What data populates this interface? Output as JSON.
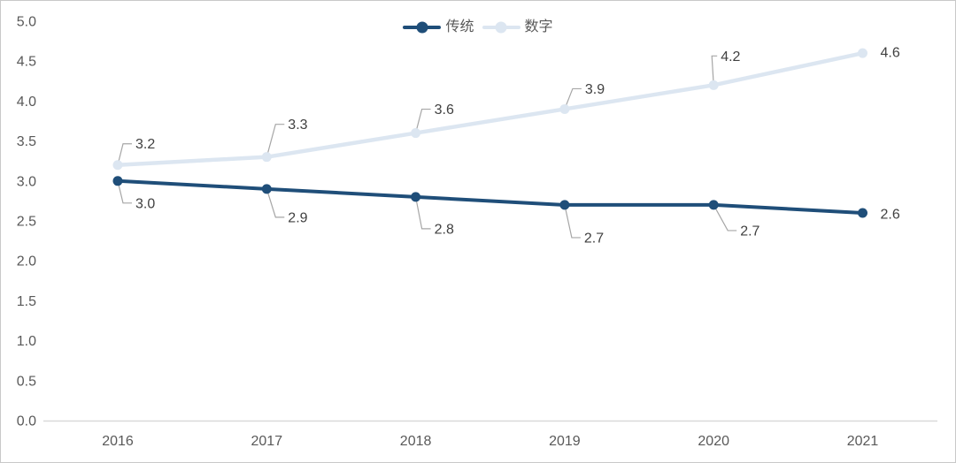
{
  "chart_data": {
    "type": "line",
    "title": "",
    "xlabel": "",
    "ylabel": "",
    "categories": [
      "2016",
      "2017",
      "2018",
      "2019",
      "2020",
      "2021"
    ],
    "series": [
      {
        "id": "traditional",
        "name": "传统",
        "values": [
          3.0,
          2.9,
          2.8,
          2.7,
          2.7,
          2.6
        ],
        "point_labels": [
          "3.0",
          "2.9",
          "2.8",
          "2.7",
          "2.7",
          "2.6"
        ],
        "color": "#1f4e79",
        "label_side": "below"
      },
      {
        "id": "digital",
        "name": "数字",
        "values": [
          3.2,
          3.3,
          3.6,
          3.9,
          4.2,
          4.6
        ],
        "point_labels": [
          "3.2",
          "3.3",
          "3.6",
          "3.9",
          "4.2",
          "4.6"
        ],
        "color": "#dce6f1",
        "label_side": "above"
      }
    ],
    "ylim": [
      0,
      5
    ],
    "ytick_labels": [
      "0.0",
      "0.5",
      "1.0",
      "1.5",
      "2.0",
      "2.5",
      "3.0",
      "3.5",
      "4.0",
      "4.5",
      "5.0"
    ],
    "grid": false,
    "legend_position": "top-center",
    "layout_hints": {
      "label_offsets": {
        "traditional": [
          [
            20,
            25
          ],
          [
            24,
            32
          ],
          [
            21,
            36
          ],
          [
            22,
            37
          ],
          [
            30,
            29
          ],
          [
            20,
            1
          ]
        ],
        "digital": [
          [
            20,
            -24
          ],
          [
            24,
            -37
          ],
          [
            21,
            -27
          ],
          [
            23,
            -23
          ],
          [
            8,
            -33
          ],
          [
            20,
            -1
          ]
        ]
      },
      "leader_lines": {
        "traditional": [
          true,
          true,
          true,
          true,
          true,
          false
        ],
        "digital": [
          true,
          true,
          true,
          true,
          true,
          false
        ]
      }
    },
    "style": {
      "axis_line_color": "#d9d9d9",
      "tick_label_color": "#595959",
      "data_label_color": "#404040",
      "leader_line_color": "#a6a6a6",
      "background": "#ffffff",
      "border_color": "#c9c9c9"
    }
  }
}
